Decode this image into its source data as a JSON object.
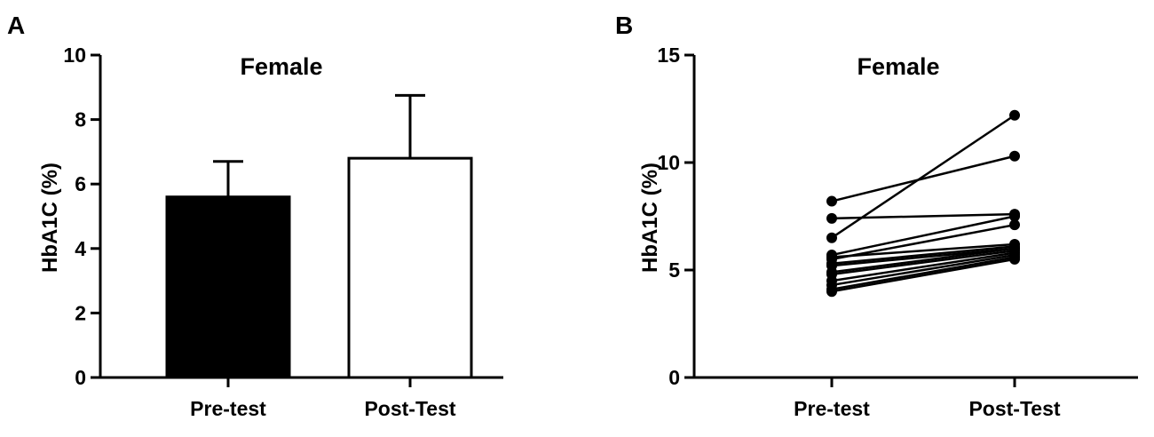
{
  "chart_data": [
    {
      "type": "bar",
      "panel_label": "A",
      "title": "Female",
      "xlabel": "",
      "ylabel": "HbA1C (%)",
      "categories": [
        "Pre-test",
        "Post-Test"
      ],
      "values": [
        5.6,
        6.8
      ],
      "error_upper": [
        1.1,
        1.95
      ],
      "bar_fill": [
        "#000000",
        "#ffffff"
      ],
      "ylim": [
        0,
        10
      ],
      "yticks": [
        0,
        2,
        4,
        6,
        8,
        10
      ],
      "grid": false
    },
    {
      "type": "line",
      "panel_label": "B",
      "title": "Female",
      "xlabel": "",
      "ylabel": "HbA1C (%)",
      "categories": [
        "Pre-test",
        "Post-Test"
      ],
      "pairs": [
        [
          6.5,
          12.2
        ],
        [
          8.2,
          10.3
        ],
        [
          7.4,
          7.6
        ],
        [
          5.7,
          7.5
        ],
        [
          5.5,
          7.1
        ],
        [
          5.6,
          6.2
        ],
        [
          5.3,
          6.1
        ],
        [
          5.2,
          6.0
        ],
        [
          4.9,
          6.0
        ],
        [
          4.8,
          5.9
        ],
        [
          4.5,
          5.8
        ],
        [
          4.3,
          5.7
        ],
        [
          4.1,
          5.6
        ],
        [
          4.0,
          5.5
        ]
      ],
      "ylim": [
        0,
        15
      ],
      "yticks": [
        0,
        5,
        10,
        15
      ],
      "grid": false
    }
  ]
}
